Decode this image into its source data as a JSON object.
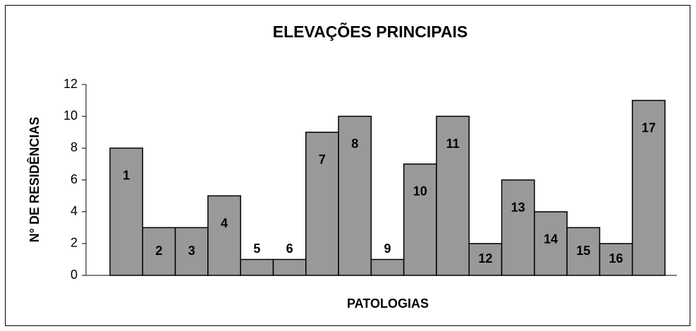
{
  "chart_data": {
    "type": "bar",
    "title": "ELEVAÇÕES PRINCIPAIS",
    "x_label": "PATOLOGIAS",
    "y_label": "N° DE RESIDÊNCIAS",
    "categories": [
      "1",
      "2",
      "3",
      "4",
      "5",
      "6",
      "7",
      "8",
      "9",
      "10",
      "11",
      "12",
      "13",
      "14",
      "15",
      "16",
      "17"
    ],
    "values": [
      8,
      3,
      3,
      5,
      1,
      1,
      9,
      10,
      1,
      7,
      10,
      2,
      6,
      4,
      3,
      2,
      11
    ],
    "color": "#999999",
    "ylim": [
      0,
      12
    ],
    "yticks": [
      0,
      2,
      4,
      6,
      8,
      10,
      12
    ],
    "grid": false
  }
}
